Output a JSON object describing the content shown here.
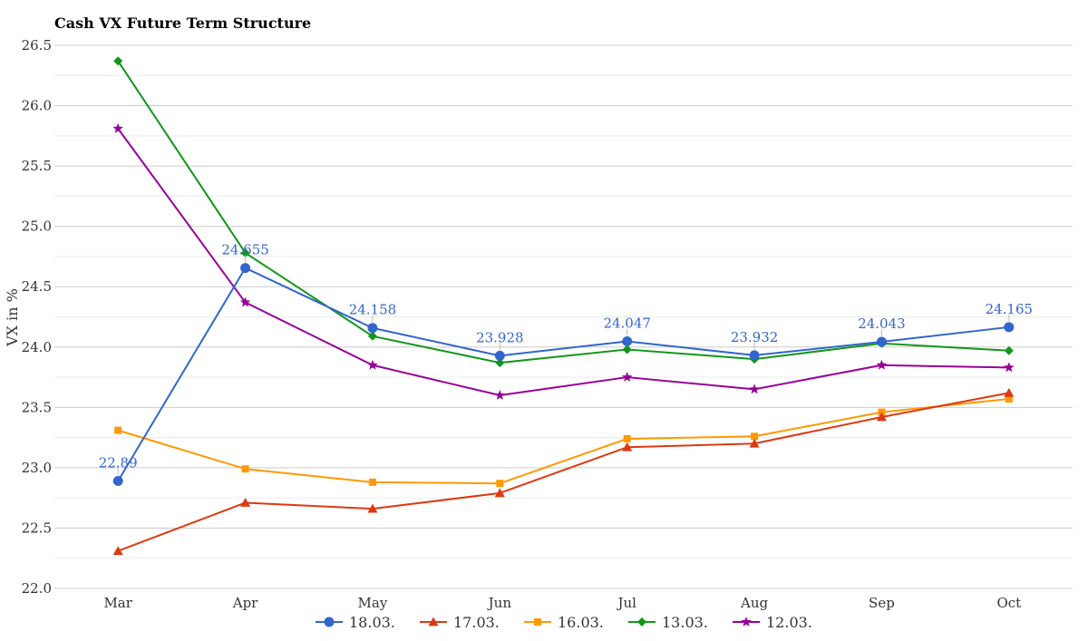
{
  "chart_data": {
    "type": "line",
    "title": "Cash VX Future Term Structure",
    "xlabel": "",
    "ylabel": "VX in %",
    "ylim": [
      22.0,
      26.5
    ],
    "yticks": [
      "22.0",
      "22.5",
      "23.0",
      "23.5",
      "24.0",
      "24.5",
      "25.0",
      "25.5",
      "26.0",
      "26.5"
    ],
    "categories": [
      "Mar",
      "Apr",
      "May",
      "Jun",
      "Jul",
      "Aug",
      "Sep",
      "Oct"
    ],
    "grid": true,
    "legend_position": "bottom",
    "series": [
      {
        "name": "18.03.",
        "color": "#3366cc",
        "marker": "circle",
        "values": [
          22.89,
          24.655,
          24.158,
          23.928,
          24.047,
          23.932,
          24.043,
          24.165
        ],
        "labels": [
          "22.89",
          "24.655",
          "24.158",
          "23.928",
          "24.047",
          "23.932",
          "24.043",
          "24.165"
        ]
      },
      {
        "name": "17.03.",
        "color": "#dc3912",
        "marker": "triangle",
        "values": [
          22.31,
          22.71,
          22.66,
          22.79,
          23.17,
          23.2,
          23.42,
          23.62
        ]
      },
      {
        "name": "16.03.",
        "color": "#ff9900",
        "marker": "square",
        "values": [
          23.31,
          22.99,
          22.88,
          22.87,
          23.24,
          23.26,
          23.46,
          23.57
        ]
      },
      {
        "name": "13.03.",
        "color": "#109618",
        "marker": "diamond",
        "values": [
          26.37,
          24.78,
          24.09,
          23.87,
          23.98,
          23.9,
          24.03,
          23.97
        ]
      },
      {
        "name": "12.03.",
        "color": "#990099",
        "marker": "star",
        "values": [
          25.81,
          24.37,
          23.85,
          23.6,
          23.75,
          23.65,
          23.85,
          23.83
        ]
      }
    ]
  }
}
